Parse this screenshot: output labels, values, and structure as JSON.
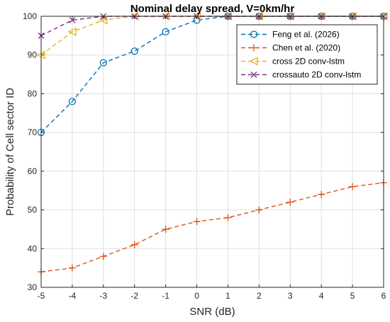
{
  "chart_data": {
    "type": "line",
    "title": "Nominal delay spread, V=0km/hr",
    "xlabel": "SNR (dB)",
    "ylabel": "Probability of Cell sector ID",
    "xlim": [
      -5,
      6
    ],
    "ylim": [
      30,
      100
    ],
    "x_ticks": [
      -5,
      -4,
      -3,
      -2,
      -1,
      0,
      1,
      2,
      3,
      4,
      5,
      6
    ],
    "y_ticks": [
      30,
      40,
      50,
      60,
      70,
      80,
      90,
      100
    ],
    "grid": true,
    "legend_position": "top-right",
    "series": [
      {
        "name": "Feng et al. (2026)",
        "color": "#0072BD",
        "marker": "circle",
        "line_style": "dashed",
        "x": [
          -5,
          -4,
          -3,
          -2,
          -1,
          0,
          1,
          2,
          3,
          4,
          5,
          6
        ],
        "y": [
          70,
          78,
          88,
          91,
          96,
          99,
          100,
          100,
          100,
          100,
          100,
          100
        ]
      },
      {
        "name": "Chen et al. (2020)",
        "color": "#D95319",
        "marker": "plus",
        "line_style": "dashed",
        "x": [
          -5,
          -4,
          -3,
          -2,
          -1,
          0,
          1,
          2,
          3,
          4,
          5,
          6
        ],
        "y": [
          34,
          35,
          38,
          41,
          45,
          47,
          48,
          50,
          52,
          54,
          56,
          57
        ]
      },
      {
        "name": "cross 2D conv-lstm",
        "color": "#EDB120",
        "marker": "triangle-left",
        "line_style": "dashed",
        "x": [
          -5,
          -4,
          -3,
          -2,
          -1,
          0,
          1,
          2,
          3,
          4,
          5,
          6
        ],
        "y": [
          90,
          96,
          99,
          100,
          100,
          100,
          100,
          100,
          100,
          100,
          100,
          100
        ]
      },
      {
        "name": "crossauto 2D conv-lstm",
        "color": "#7E2F8E",
        "marker": "x",
        "line_style": "dashed",
        "x": [
          -5,
          -4,
          -3,
          -2,
          -1,
          0,
          1,
          2,
          3,
          4,
          5,
          6
        ],
        "y": [
          95,
          99,
          100,
          100,
          100,
          100,
          100,
          100,
          100,
          100,
          100,
          100
        ]
      }
    ]
  }
}
